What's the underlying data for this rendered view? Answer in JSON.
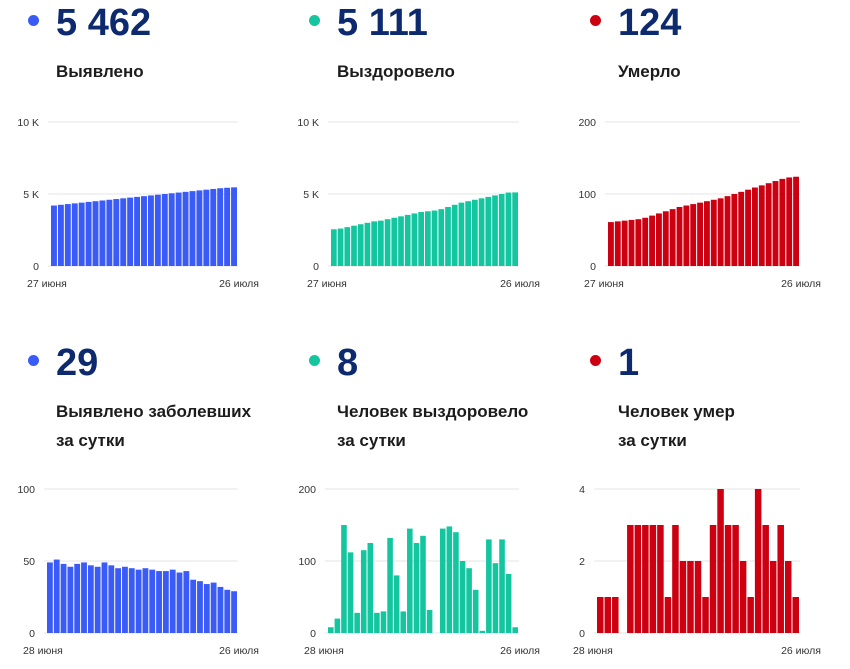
{
  "colors": {
    "blue": "#3b5bf6",
    "green": "#14c6a0",
    "red": "#cc0011",
    "value_text": "#0d2a6e",
    "grid": "#e6e6e6"
  },
  "panels": [
    {
      "id": "detected",
      "value": "5 462",
      "label_lines": [
        "Выявлено"
      ],
      "color_key": "blue",
      "icon": "blue-dot-icon"
    },
    {
      "id": "recovered",
      "value": "5 111",
      "label_lines": [
        "Выздоровело"
      ],
      "color_key": "green",
      "icon": "green-dot-icon"
    },
    {
      "id": "died",
      "value": "124",
      "label_lines": [
        "Умерло"
      ],
      "color_key": "red",
      "icon": "red-dot-icon"
    },
    {
      "id": "daily-detected",
      "value": "29",
      "label_lines": [
        "Выявлено заболевших",
        "за сутки"
      ],
      "color_key": "blue",
      "icon": "blue-dot-icon"
    },
    {
      "id": "daily-recovered",
      "value": "8",
      "label_lines": [
        "Человек выздоровело",
        "за сутки"
      ],
      "color_key": "green",
      "icon": "green-dot-icon"
    },
    {
      "id": "daily-died",
      "value": "1",
      "label_lines": [
        "Человек умер",
        "за сутки"
      ],
      "color_key": "red",
      "icon": "red-dot-icon"
    }
  ],
  "chart_data": [
    {
      "type": "bar",
      "title": "Выявлено",
      "x_start_label": "27 июня",
      "x_end_label": "26 июля",
      "ylim": [
        0,
        10000
      ],
      "y_ticks": [
        0,
        5000,
        10000
      ],
      "y_tick_labels": [
        "0",
        "5 K",
        "10 K"
      ],
      "values": [
        4200,
        4250,
        4300,
        4350,
        4400,
        4450,
        4500,
        4550,
        4600,
        4650,
        4700,
        4750,
        4800,
        4850,
        4900,
        4950,
        5000,
        5050,
        5100,
        5150,
        5200,
        5250,
        5300,
        5350,
        5400,
        5433,
        5462
      ]
    },
    {
      "type": "bar",
      "title": "Выздоровело",
      "x_start_label": "27 июня",
      "x_end_label": "26 июля",
      "ylim": [
        0,
        10000
      ],
      "y_ticks": [
        0,
        5000,
        10000
      ],
      "y_tick_labels": [
        "0",
        "5 K",
        "10 K"
      ],
      "values": [
        2550,
        2600,
        2700,
        2800,
        2900,
        3000,
        3100,
        3150,
        3250,
        3350,
        3450,
        3550,
        3650,
        3750,
        3800,
        3850,
        3950,
        4100,
        4250,
        4400,
        4500,
        4600,
        4700,
        4800,
        4900,
        5000,
        5100,
        5111
      ]
    },
    {
      "type": "bar",
      "title": "Умерло",
      "x_start_label": "27 июня",
      "x_end_label": "26 июля",
      "ylim": [
        0,
        200
      ],
      "y_ticks": [
        0,
        100,
        200
      ],
      "y_tick_labels": [
        "0",
        "100",
        "200"
      ],
      "values": [
        61,
        62,
        63,
        64,
        65,
        67,
        70,
        73,
        76,
        79,
        82,
        84,
        86,
        88,
        90,
        92,
        94,
        97,
        100,
        103,
        106,
        109,
        112,
        115,
        118,
        121,
        123,
        124
      ]
    },
    {
      "type": "bar",
      "title": "Выявлено заболевших за сутки",
      "x_start_label": "28 июня",
      "x_end_label": "26 июля",
      "ylim": [
        0,
        100
      ],
      "y_ticks": [
        0,
        50,
        100
      ],
      "y_tick_labels": [
        "0",
        "50",
        "100"
      ],
      "values": [
        49,
        51,
        48,
        46,
        48,
        49,
        47,
        46,
        49,
        47,
        45,
        46,
        45,
        44,
        45,
        44,
        43,
        43,
        44,
        42,
        43,
        37,
        36,
        34,
        35,
        32,
        30,
        29
      ]
    },
    {
      "type": "bar",
      "title": "Человек выздоровело за сутки",
      "x_start_label": "28 июня",
      "x_end_label": "26 июля",
      "ylim": [
        0,
        200
      ],
      "y_ticks": [
        0,
        100,
        200
      ],
      "y_tick_labels": [
        "0",
        "100",
        "200"
      ],
      "values": [
        8,
        20,
        150,
        112,
        28,
        115,
        125,
        28,
        30,
        132,
        80,
        30,
        145,
        125,
        135,
        32,
        0,
        145,
        148,
        140,
        100,
        90,
        60,
        3,
        130,
        97,
        130,
        82,
        8
      ]
    },
    {
      "type": "bar",
      "title": "Человек умер за сутки",
      "x_start_label": "28 июня",
      "x_end_label": "26 июля",
      "ylim": [
        0,
        4
      ],
      "y_ticks": [
        0,
        2,
        4
      ],
      "y_tick_labels": [
        "0",
        "2",
        "4"
      ],
      "values": [
        1,
        1,
        1,
        0,
        3,
        3,
        3,
        3,
        3,
        1,
        3,
        2,
        2,
        2,
        1,
        3,
        4,
        3,
        3,
        2,
        1,
        4,
        3,
        2,
        3,
        2,
        1
      ]
    }
  ]
}
